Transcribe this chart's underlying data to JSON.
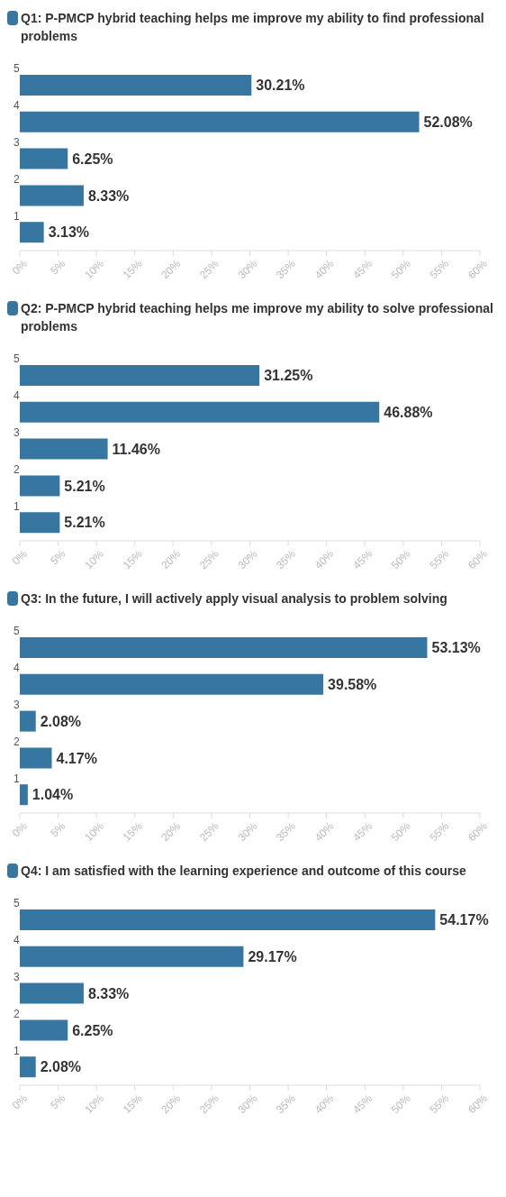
{
  "chart_data": [
    {
      "type": "bar",
      "orientation": "horizontal",
      "title": "Q1: P-PMCP hybrid teaching helps me improve my ability to find professional problems",
      "categories": [
        "5",
        "4",
        "3",
        "2",
        "1"
      ],
      "values": [
        30.21,
        52.08,
        6.25,
        8.33,
        3.13
      ],
      "value_labels": [
        "30.21%",
        "52.08%",
        "6.25%",
        "8.33%",
        "3.13%"
      ],
      "color": "#3776a1",
      "xlim": [
        0,
        60
      ],
      "xticks": [
        {
          "value": 0,
          "label": "0%"
        },
        {
          "value": 5,
          "label": "5%"
        },
        {
          "value": 10,
          "label": "10%"
        },
        {
          "value": 15,
          "label": "15%"
        },
        {
          "value": 20,
          "label": "20%"
        },
        {
          "value": 25,
          "label": "25%"
        },
        {
          "value": 30,
          "label": "30%"
        },
        {
          "value": 35,
          "label": "35%"
        },
        {
          "value": 40,
          "label": "40%"
        },
        {
          "value": 45,
          "label": "45%"
        },
        {
          "value": 50,
          "label": "50%"
        },
        {
          "value": 55,
          "label": "55%"
        },
        {
          "value": 60,
          "label": "60%"
        }
      ]
    },
    {
      "type": "bar",
      "orientation": "horizontal",
      "title": "Q2: P-PMCP hybrid teaching helps me improve my ability to solve professional problems",
      "categories": [
        "5",
        "4",
        "3",
        "2",
        "1"
      ],
      "values": [
        31.25,
        46.88,
        11.46,
        5.21,
        5.21
      ],
      "value_labels": [
        "31.25%",
        "46.88%",
        "11.46%",
        "5.21%",
        "5.21%"
      ],
      "color": "#3776a1",
      "xlim": [
        0,
        60
      ],
      "xticks": [
        {
          "value": 0,
          "label": "0%"
        },
        {
          "value": 5,
          "label": "5%"
        },
        {
          "value": 10,
          "label": "10%"
        },
        {
          "value": 15,
          "label": "15%"
        },
        {
          "value": 20,
          "label": "20%"
        },
        {
          "value": 25,
          "label": "25%"
        },
        {
          "value": 30,
          "label": "30%"
        },
        {
          "value": 35,
          "label": "35%"
        },
        {
          "value": 40,
          "label": "40%"
        },
        {
          "value": 45,
          "label": "45%"
        },
        {
          "value": 50,
          "label": "50%"
        },
        {
          "value": 55,
          "label": "55%"
        },
        {
          "value": 60,
          "label": "60%"
        }
      ]
    },
    {
      "type": "bar",
      "orientation": "horizontal",
      "title": "Q3: In the future, I will actively apply visual analysis to problem solving",
      "categories": [
        "5",
        "4",
        "3",
        "2",
        "1"
      ],
      "values": [
        53.13,
        39.58,
        2.08,
        4.17,
        1.04
      ],
      "value_labels": [
        "53.13%",
        "39.58%",
        "2.08%",
        "4.17%",
        "1.04%"
      ],
      "color": "#3776a1",
      "xlim": [
        0,
        60
      ],
      "xticks": [
        {
          "value": 0,
          "label": "0%"
        },
        {
          "value": 5,
          "label": "5%"
        },
        {
          "value": 10,
          "label": "10%"
        },
        {
          "value": 15,
          "label": "15%"
        },
        {
          "value": 20,
          "label": "20%"
        },
        {
          "value": 25,
          "label": "25%"
        },
        {
          "value": 30,
          "label": "30%"
        },
        {
          "value": 35,
          "label": "35%"
        },
        {
          "value": 40,
          "label": "40%"
        },
        {
          "value": 45,
          "label": "45%"
        },
        {
          "value": 50,
          "label": "50%"
        },
        {
          "value": 55,
          "label": "55%"
        },
        {
          "value": 60,
          "label": "60%"
        }
      ]
    },
    {
      "type": "bar",
      "orientation": "horizontal",
      "title": "Q4: I am satisfied with the learning experience and outcome of this course",
      "categories": [
        "5",
        "4",
        "3",
        "2",
        "1"
      ],
      "values": [
        54.17,
        29.17,
        8.33,
        6.25,
        2.08
      ],
      "value_labels": [
        "54.17%",
        "29.17%",
        "8.33%",
        "6.25%",
        "2.08%"
      ],
      "color": "#3776a1",
      "xlim": [
        0,
        60
      ],
      "xticks": [
        {
          "value": 0,
          "label": "0%"
        },
        {
          "value": 5,
          "label": "5%"
        },
        {
          "value": 10,
          "label": "10%"
        },
        {
          "value": 15,
          "label": "15%"
        },
        {
          "value": 20,
          "label": "20%"
        },
        {
          "value": 25,
          "label": "25%"
        },
        {
          "value": 30,
          "label": "30%"
        },
        {
          "value": 35,
          "label": "35%"
        },
        {
          "value": 40,
          "label": "40%"
        },
        {
          "value": 45,
          "label": "45%"
        },
        {
          "value": 50,
          "label": "50%"
        },
        {
          "value": 55,
          "label": "55%"
        },
        {
          "value": 60,
          "label": "60%"
        }
      ]
    }
  ]
}
